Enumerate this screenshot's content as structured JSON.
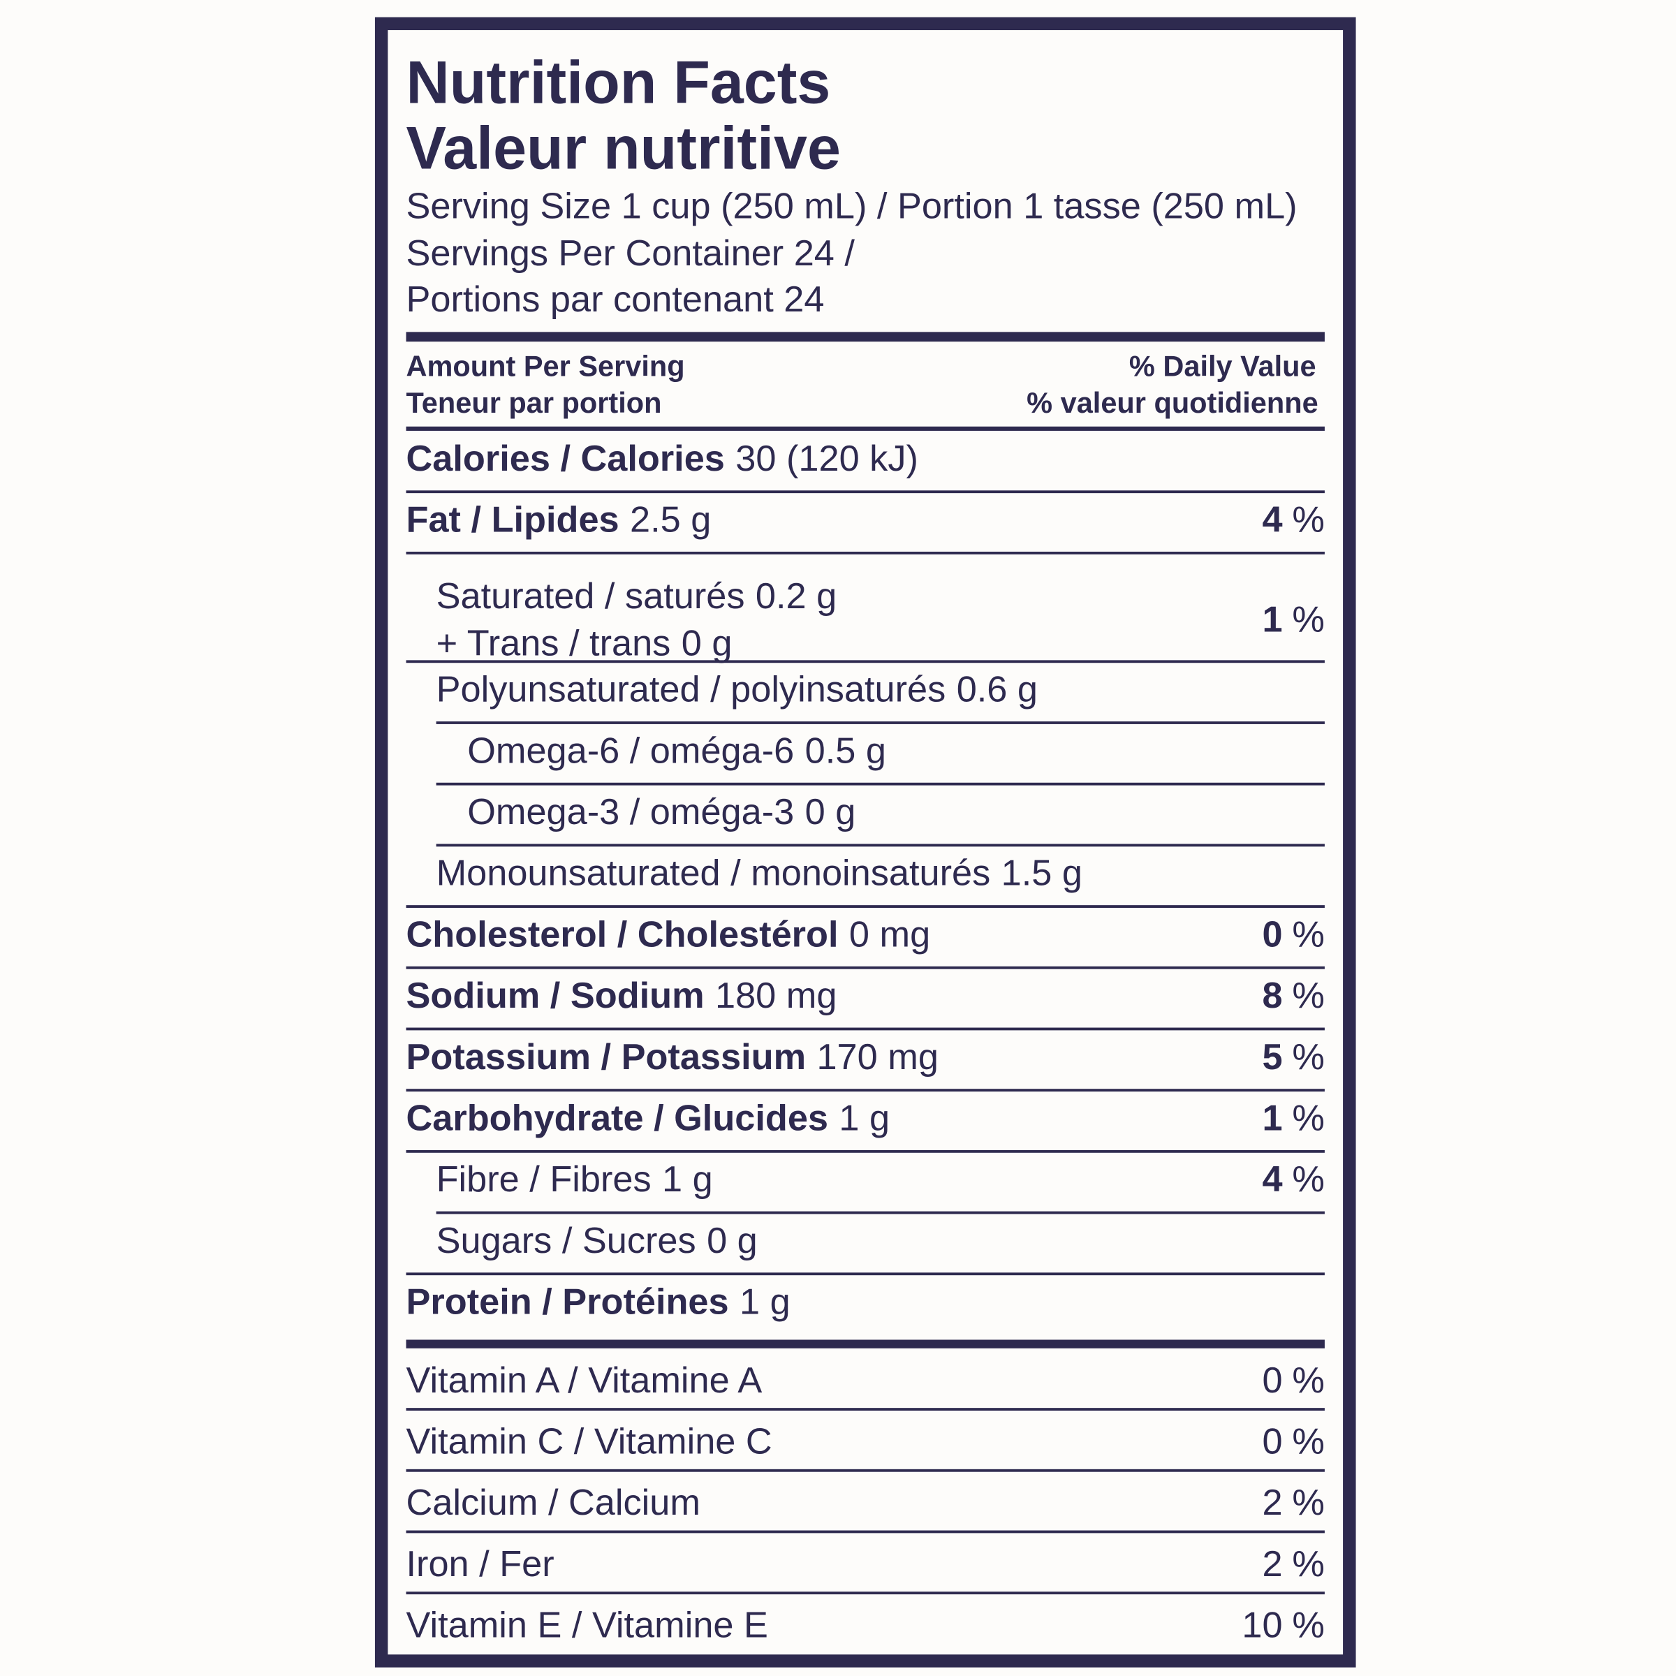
{
  "header": {
    "title": [
      "Nutrition Facts",
      "Valeur nutritive"
    ],
    "serving": [
      "Serving Size 1 cup (250 mL) / Portion 1 tasse (250 mL)",
      "Servings Per Container 24 /",
      "Portions par contenant 24"
    ],
    "amount_label": [
      "Amount Per Serving",
      "Teneur par portion"
    ],
    "dv_label": [
      "% Daily Value",
      "% valeur quotidienne"
    ]
  },
  "nutrients": [
    {
      "name": "Calories / Calories",
      "amount": "30 (120 kJ)",
      "level": 0
    },
    {
      "name": "Fat / Lipides",
      "amount": "2.5 g",
      "dv": 4,
      "unit": "%",
      "level": 0
    },
    {
      "name": "Saturated / saturés",
      "amount": "0.2 g",
      "name2": "+ Trans / trans",
      "amount2": "0 g",
      "dv": 1,
      "unit": "%",
      "level": 1
    },
    {
      "name": "Polyunsaturated / polyinsaturés",
      "amount": "0.6 g",
      "level": 1
    },
    {
      "name": "Omega-6 / oméga-6",
      "amount": "0.5 g",
      "level": 2
    },
    {
      "name": "Omega-3 / oméga-3",
      "amount": "0 g",
      "level": 2
    },
    {
      "name": "Monounsaturated / monoinsaturés",
      "amount": "1.5 g",
      "level": 1
    },
    {
      "name": "Cholesterol / Cholestérol",
      "amount": "0 mg",
      "dv": 0,
      "unit": "%",
      "level": 0
    },
    {
      "name": "Sodium / Sodium",
      "amount": "180 mg",
      "dv": 8,
      "unit": "%",
      "level": 0
    },
    {
      "name": "Potassium / Potassium",
      "amount": "170 mg",
      "dv": 5,
      "unit": "%",
      "level": 0
    },
    {
      "name": "Carbohydrate / Glucides",
      "amount": "1 g",
      "dv": 1,
      "unit": "%",
      "level": 0
    },
    {
      "name": "Fibre / Fibres",
      "amount": "1 g",
      "dv": 4,
      "unit": "%",
      "level": 1
    },
    {
      "name": "Sugars / Sucres",
      "amount": "0 g",
      "level": 1
    },
    {
      "name": "Protein / Protéines",
      "amount": "1 g",
      "level": 0
    }
  ],
  "vitamins": [
    {
      "name": "Vitamin A / Vitamine A",
      "dv": 0,
      "unit": "%"
    },
    {
      "name": "Vitamin C / Vitamine C",
      "dv": 0,
      "unit": "%"
    },
    {
      "name": "Calcium / Calcium",
      "dv": 2,
      "unit": "%"
    },
    {
      "name": "Iron / Fer",
      "dv": 2,
      "unit": "%"
    },
    {
      "name": "Vitamin E / Vitamine E",
      "dv": 10,
      "unit": "%"
    }
  ]
}
